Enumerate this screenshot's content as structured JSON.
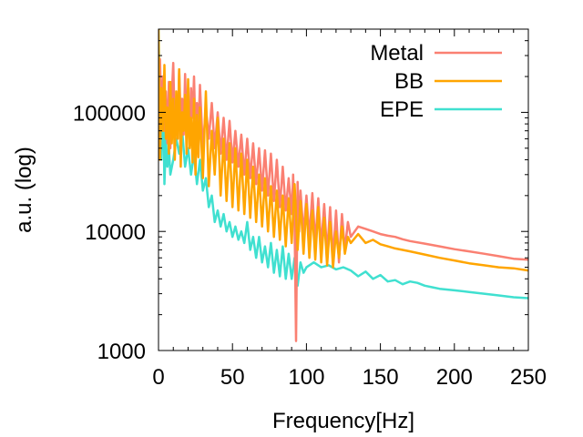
{
  "chart_data": {
    "type": "line",
    "title": "",
    "xlabel": "Frequency[Hz]",
    "ylabel": "a.u. (log)",
    "xlim": [
      0,
      250
    ],
    "ylim": [
      1000,
      500000
    ],
    "yscale": "log",
    "xticks": [
      0,
      50,
      100,
      150,
      200,
      250
    ],
    "xtick_labels": [
      "0",
      "50",
      "100",
      "150",
      "200",
      "250"
    ],
    "yticks": [
      1000,
      10000,
      100000
    ],
    "ytick_labels": [
      "1000",
      "10000",
      "100000"
    ],
    "grid": false,
    "legend": "top-right",
    "series": [
      {
        "name": "Metal",
        "color": "#fa8072",
        "x": [
          0,
          1,
          2,
          3,
          4,
          5,
          6,
          7,
          8,
          9,
          10,
          11,
          12,
          13,
          14,
          15,
          16,
          17,
          18,
          19,
          20,
          21,
          22,
          23,
          24,
          25,
          26,
          27,
          28,
          30,
          32,
          34,
          36,
          38,
          40,
          42,
          44,
          46,
          48,
          50,
          52,
          54,
          56,
          58,
          60,
          62,
          64,
          66,
          68,
          70,
          72,
          74,
          76,
          78,
          80,
          82,
          84,
          86,
          88,
          90,
          91,
          92,
          93,
          94,
          95,
          96,
          98,
          100,
          102,
          104,
          106,
          108,
          110,
          112,
          114,
          116,
          118,
          120,
          122,
          124,
          126,
          128,
          130,
          135,
          140,
          145,
          150,
          155,
          160,
          165,
          170,
          180,
          190,
          200,
          210,
          220,
          230,
          240,
          250
        ],
        "values": [
          60000,
          280000,
          90000,
          200000,
          70000,
          150000,
          55000,
          180000,
          50000,
          140000,
          260000,
          70000,
          110000,
          60000,
          230000,
          85000,
          130000,
          65000,
          210000,
          75000,
          110000,
          60000,
          160000,
          90000,
          200000,
          65000,
          120000,
          70000,
          170000,
          50000,
          110000,
          60000,
          120000,
          50000,
          100000,
          45000,
          90000,
          40000,
          85000,
          38000,
          70000,
          35000,
          65000,
          30000,
          60000,
          28000,
          55000,
          25000,
          50000,
          22000,
          48000,
          20000,
          45000,
          18000,
          40000,
          16000,
          35000,
          15000,
          28000,
          14000,
          30000,
          12000,
          1200,
          26000,
          10000,
          22000,
          9500,
          20000,
          9000,
          21000,
          8000,
          19000,
          7500,
          17000,
          6500,
          16000,
          6000,
          15000,
          5500,
          14000,
          7000,
          12000,
          9000,
          11000,
          10500,
          10000,
          9500,
          9200,
          9000,
          8600,
          8300,
          7900,
          7500,
          7100,
          6800,
          6500,
          6200,
          5900,
          5800
        ]
      },
      {
        "name": "BB",
        "color": "#ffa500",
        "x": [
          0,
          1,
          2,
          3,
          4,
          5,
          6,
          7,
          8,
          9,
          10,
          11,
          12,
          13,
          14,
          15,
          16,
          17,
          18,
          19,
          20,
          21,
          22,
          23,
          24,
          25,
          26,
          27,
          28,
          30,
          32,
          34,
          36,
          38,
          40,
          42,
          44,
          46,
          48,
          50,
          52,
          54,
          56,
          58,
          60,
          62,
          64,
          66,
          68,
          70,
          72,
          74,
          76,
          78,
          80,
          82,
          84,
          86,
          88,
          90,
          92,
          94,
          96,
          98,
          100,
          102,
          104,
          106,
          108,
          110,
          112,
          114,
          116,
          118,
          120,
          122,
          124,
          126,
          128,
          130,
          135,
          140,
          145,
          150,
          155,
          160,
          165,
          170,
          180,
          190,
          200,
          210,
          220,
          230,
          240,
          250
        ],
        "values": [
          500000,
          40000,
          160000,
          70000,
          250000,
          60000,
          110000,
          45000,
          180000,
          55000,
          130000,
          40000,
          150000,
          60000,
          230000,
          35000,
          100000,
          70000,
          140000,
          45000,
          190000,
          50000,
          90000,
          38000,
          130000,
          30000,
          95000,
          42000,
          110000,
          28000,
          150000,
          24000,
          70000,
          30000,
          90000,
          20000,
          60000,
          18000,
          55000,
          16000,
          50000,
          15000,
          45000,
          14000,
          40000,
          13000,
          35000,
          12000,
          30000,
          11000,
          28000,
          10000,
          24000,
          9000,
          22000,
          8500,
          20000,
          7500,
          19000,
          8000,
          25000,
          7000,
          18000,
          6500,
          17000,
          6000,
          15000,
          5800,
          16000,
          5500,
          13000,
          5200,
          12000,
          5000,
          10000,
          6000,
          11000,
          6500,
          9000,
          8000,
          9500,
          8000,
          8500,
          7800,
          7500,
          7200,
          7000,
          6800,
          6400,
          6000,
          5700,
          5400,
          5200,
          5000,
          4900,
          4700
        ]
      },
      {
        "name": "EPE",
        "color": "#40e0d0",
        "x": [
          0,
          1,
          2,
          3,
          4,
          5,
          6,
          7,
          8,
          10,
          12,
          14,
          16,
          18,
          20,
          22,
          24,
          26,
          28,
          30,
          32,
          34,
          36,
          38,
          40,
          42,
          44,
          46,
          48,
          50,
          52,
          54,
          56,
          58,
          60,
          62,
          64,
          66,
          68,
          70,
          72,
          74,
          76,
          78,
          80,
          82,
          84,
          86,
          88,
          90,
          92,
          94,
          96,
          98,
          100,
          105,
          110,
          115,
          120,
          125,
          130,
          135,
          140,
          145,
          150,
          155,
          160,
          165,
          170,
          175,
          180,
          185,
          190,
          200,
          210,
          220,
          230,
          240,
          250
        ],
        "values": [
          500000,
          120000,
          40000,
          180000,
          25000,
          60000,
          35000,
          50000,
          30000,
          40000,
          60000,
          45000,
          70000,
          35000,
          50000,
          30000,
          45000,
          25000,
          40000,
          22000,
          28000,
          16000,
          20000,
          12000,
          15000,
          11000,
          14000,
          10000,
          12000,
          9000,
          11000,
          8500,
          10000,
          8000,
          12000,
          7000,
          9000,
          6000,
          9000,
          5500,
          7500,
          5000,
          8000,
          4500,
          7000,
          4200,
          7500,
          4000,
          6500,
          4000,
          6000,
          3500,
          5500,
          4500,
          5000,
          5500,
          5000,
          5200,
          4800,
          5000,
          4700,
          4200,
          4600,
          4000,
          4300,
          3800,
          3900,
          3600,
          3800,
          3700,
          3500,
          3400,
          3300,
          3200,
          3100,
          3000,
          2900,
          2800,
          2750
        ]
      }
    ]
  }
}
